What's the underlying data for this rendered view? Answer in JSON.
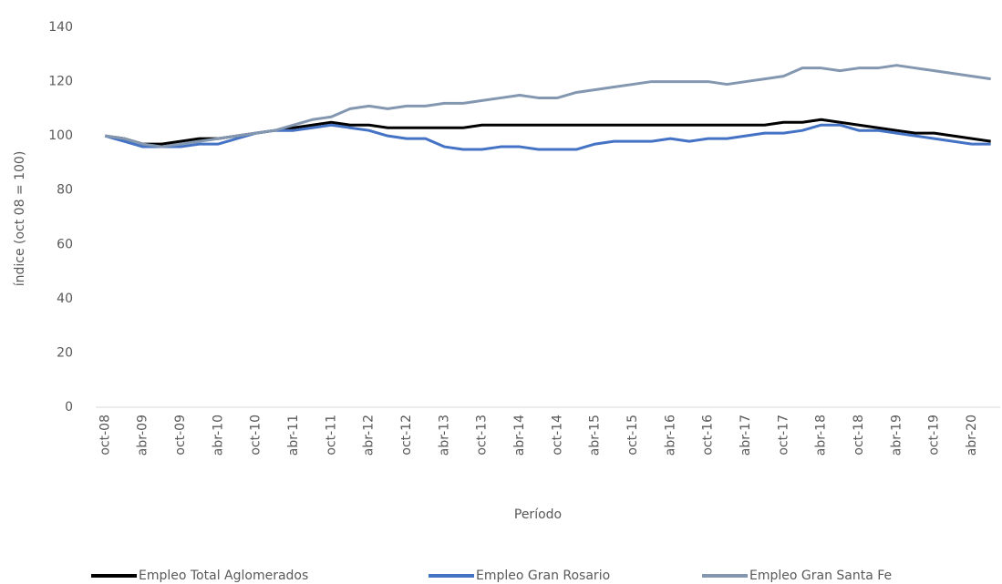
{
  "chart_data": {
    "type": "line",
    "x_label": "Período",
    "y_label": "índice (oct 08 = 100)",
    "categories": [
      "oct-08",
      null,
      "abr-09",
      null,
      "oct-09",
      null,
      "abr-10",
      null,
      "oct-10",
      null,
      "abr-11",
      null,
      "oct-11",
      null,
      "abr-12",
      null,
      "oct-12",
      null,
      "abr-13",
      null,
      "oct-13",
      null,
      "abr-14",
      null,
      "oct-14",
      null,
      "abr-15",
      null,
      "oct-15",
      null,
      "abr-16",
      null,
      "oct-16",
      null,
      "abr-17",
      null,
      "oct-17",
      null,
      "abr-18",
      null,
      "oct-18",
      null,
      "abr-19",
      null,
      "oct-19",
      null,
      "abr-20",
      null
    ],
    "series": [
      {
        "name": "Empleo Total Aglomerados",
        "color": "#000000",
        "values": [
          100,
          99,
          97,
          97,
          98,
          99,
          99,
          100,
          101,
          102,
          103,
          104,
          105,
          104,
          104,
          103,
          103,
          103,
          103,
          103,
          104,
          104,
          104,
          104,
          104,
          104,
          104,
          104,
          104,
          104,
          104,
          104,
          104,
          104,
          104,
          104,
          105,
          105,
          106,
          105,
          104,
          103,
          102,
          101,
          101,
          100,
          99,
          98
        ]
      },
      {
        "name": "Empleo Gran Rosario",
        "color": "#4472c4",
        "values": [
          100,
          98,
          96,
          96,
          96,
          97,
          97,
          99,
          101,
          102,
          102,
          103,
          104,
          103,
          102,
          100,
          99,
          99,
          96,
          95,
          95,
          96,
          96,
          95,
          95,
          95,
          97,
          98,
          98,
          98,
          99,
          98,
          99,
          99,
          100,
          101,
          101,
          102,
          104,
          104,
          102,
          102,
          101,
          100,
          99,
          98,
          97,
          97
        ]
      },
      {
        "name": "Empleo Gran Santa Fe",
        "color": "#8497b0",
        "values": [
          100,
          99,
          97,
          96,
          97,
          98,
          99,
          100,
          101,
          102,
          104,
          106,
          107,
          110,
          111,
          110,
          111,
          111,
          112,
          112,
          113,
          114,
          115,
          114,
          114,
          116,
          117,
          118,
          119,
          120,
          120,
          120,
          120,
          119,
          120,
          121,
          122,
          125,
          125,
          124,
          125,
          125,
          126,
          125,
          124,
          123,
          122,
          121
        ]
      }
    ],
    "ylim": [
      0,
      140
    ],
    "yticks": [
      0,
      20,
      40,
      60,
      80,
      100,
      120,
      140
    ],
    "grid": false,
    "legend": "bottom"
  }
}
